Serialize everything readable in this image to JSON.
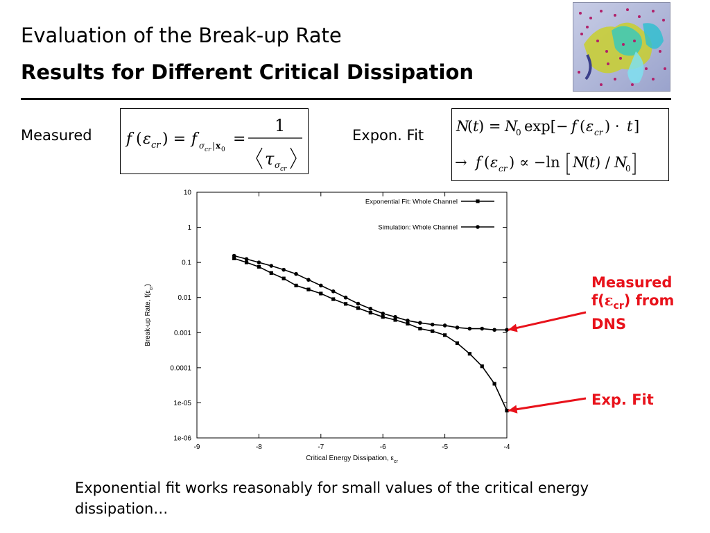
{
  "slide": {
    "title": "Evaluation of the Break-up Rate",
    "subtitle": "Results for Different Critical Dissipation",
    "caption": "Exponential fit works reasonably for small values of the critical energy dissipation…"
  },
  "equations": {
    "measured_label": "Measured",
    "expon_label": "Expon. Fit"
  },
  "annotations": {
    "measured": [
      "Measured",
      "f(",
      "ε",
      "cr",
      ") from",
      "DNS"
    ],
    "fit": "Exp. Fit",
    "arrow_color": "#e8121b"
  },
  "chart_data": {
    "type": "line",
    "xlabel": "Critical Energy Dissipation, ε",
    "xlabel_sub": "cr",
    "ylabel": "Break-up Rate, f(ε",
    "ylabel_sub": "cr",
    "ylabel_end": ")",
    "xlim": [
      -9,
      -4
    ],
    "ylim": [
      1e-06,
      10
    ],
    "yscale": "log",
    "xticks": [
      "-9",
      "-8",
      "-7",
      "-6",
      "-5",
      "-4"
    ],
    "yticks": [
      "10",
      "1",
      "0.1",
      "0.01",
      "0.001",
      "0.0001",
      "1e-05",
      "1e-06"
    ],
    "grid": false,
    "legend_position": "top-right",
    "series": [
      {
        "name": "Exponential Fit: Whole Channel",
        "marker": "square",
        "x": [
          -8.4,
          -8.2,
          -8.0,
          -7.8,
          -7.6,
          -7.4,
          -7.2,
          -7.0,
          -6.8,
          -6.6,
          -6.4,
          -6.2,
          -6.0,
          -5.8,
          -5.6,
          -5.4,
          -5.2,
          -5.0,
          -4.8,
          -4.6,
          -4.4,
          -4.2,
          -4.0
        ],
        "y": [
          0.13,
          0.1,
          0.075,
          0.05,
          0.035,
          0.022,
          0.017,
          0.013,
          0.009,
          0.0066,
          0.005,
          0.0037,
          0.0028,
          0.0023,
          0.0018,
          0.0013,
          0.0011,
          0.00085,
          0.0005,
          0.00025,
          0.00011,
          3.5e-05,
          6e-06
        ]
      },
      {
        "name": "Simulation: Whole Channel",
        "marker": "circle",
        "x": [
          -8.4,
          -8.2,
          -8.0,
          -7.8,
          -7.6,
          -7.4,
          -7.2,
          -7.0,
          -6.8,
          -6.6,
          -6.4,
          -6.2,
          -6.0,
          -5.8,
          -5.6,
          -5.4,
          -5.2,
          -5.0,
          -4.8,
          -4.6,
          -4.4,
          -4.2,
          -4.0
        ],
        "y": [
          0.155,
          0.125,
          0.1,
          0.08,
          0.062,
          0.047,
          0.032,
          0.022,
          0.015,
          0.01,
          0.0067,
          0.0048,
          0.0035,
          0.0028,
          0.0022,
          0.0019,
          0.0017,
          0.0016,
          0.0014,
          0.0013,
          0.0013,
          0.0012,
          0.0012
        ]
      }
    ]
  }
}
